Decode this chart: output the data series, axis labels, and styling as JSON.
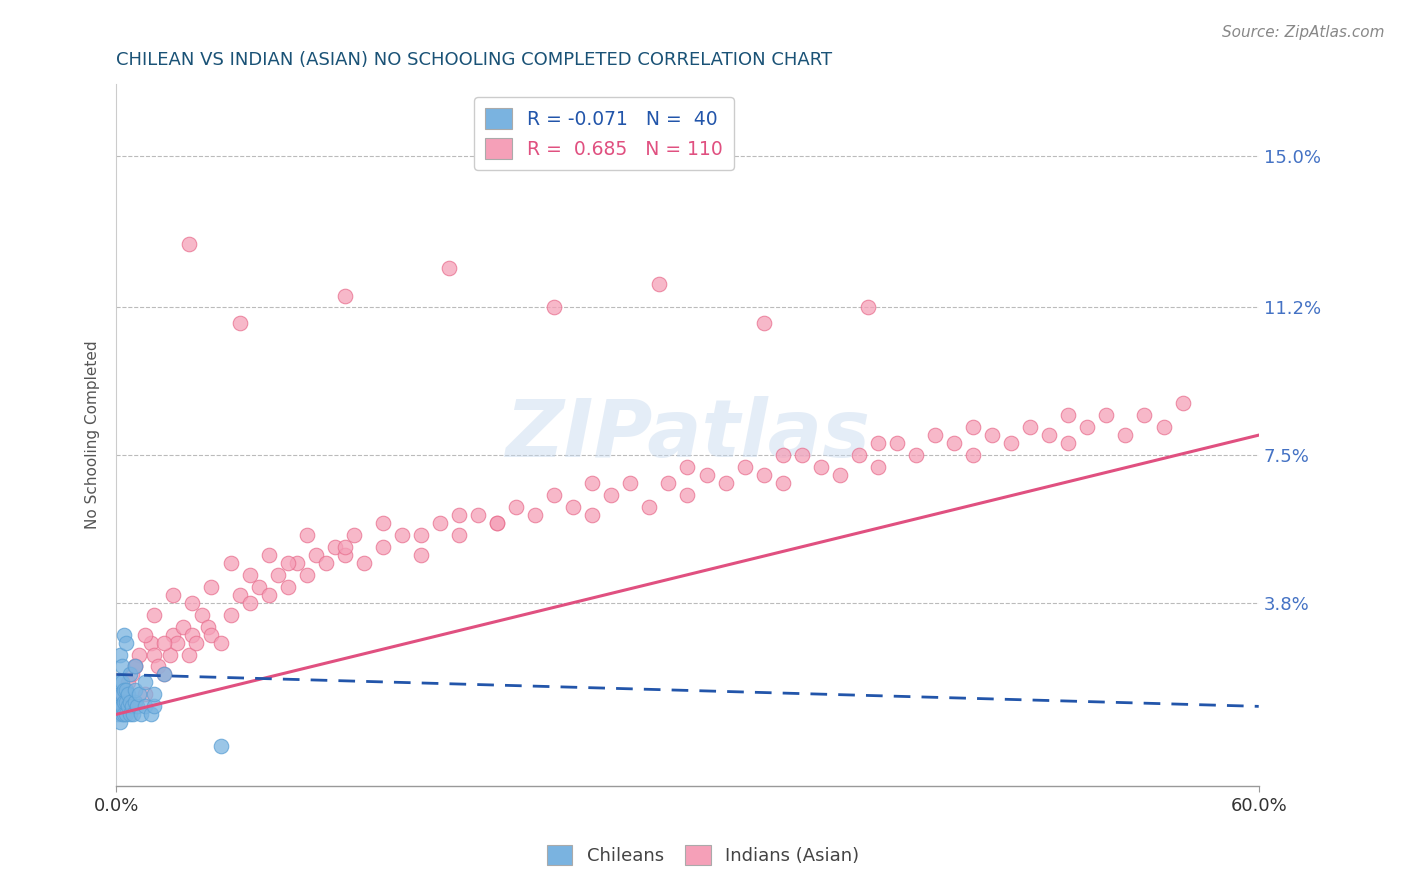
{
  "title": "CHILEAN VS INDIAN (ASIAN) NO SCHOOLING COMPLETED CORRELATION CHART",
  "source_text": "Source: ZipAtlas.com",
  "ylabel": "No Schooling Completed",
  "xlim": [
    0.0,
    0.6
  ],
  "ylim": [
    -0.008,
    0.168
  ],
  "ytick_values": [
    0.038,
    0.075,
    0.112,
    0.15
  ],
  "ytick_labels": [
    "3.8%",
    "7.5%",
    "11.2%",
    "15.0%"
  ],
  "title_color": "#1a5276",
  "title_fontsize": 13,
  "axis_color": "#cccccc",
  "ytick_color": "#4472c4",
  "grid_color": "#bbbbbb",
  "background_color": "#ffffff",
  "watermark": "ZIPatlas",
  "source_color": "#888888",
  "chilean_color": "#7ab3e0",
  "chilean_edge": "#5a9fd4",
  "chilean_trend": "#2255aa",
  "indian_color": "#f5a0b8",
  "indian_edge": "#e8708f",
  "indian_trend": "#e05080",
  "chilean_R": -0.071,
  "chilean_N": 40,
  "indian_R": 0.685,
  "indian_N": 110,
  "chilean_x": [
    0.001,
    0.001,
    0.002,
    0.002,
    0.002,
    0.002,
    0.003,
    0.003,
    0.003,
    0.003,
    0.004,
    0.004,
    0.004,
    0.005,
    0.005,
    0.005,
    0.006,
    0.006,
    0.007,
    0.007,
    0.008,
    0.009,
    0.01,
    0.01,
    0.011,
    0.012,
    0.013,
    0.015,
    0.018,
    0.02,
    0.002,
    0.003,
    0.004,
    0.005,
    0.007,
    0.01,
    0.015,
    0.02,
    0.025,
    0.055
  ],
  "chilean_y": [
    0.01,
    0.012,
    0.008,
    0.012,
    0.015,
    0.018,
    0.01,
    0.012,
    0.015,
    0.018,
    0.01,
    0.013,
    0.016,
    0.01,
    0.013,
    0.016,
    0.012,
    0.015,
    0.01,
    0.013,
    0.012,
    0.01,
    0.013,
    0.016,
    0.012,
    0.015,
    0.01,
    0.012,
    0.01,
    0.012,
    0.025,
    0.022,
    0.03,
    0.028,
    0.02,
    0.022,
    0.018,
    0.015,
    0.02,
    0.002
  ],
  "indian_x": [
    0.003,
    0.006,
    0.008,
    0.01,
    0.012,
    0.015,
    0.018,
    0.02,
    0.022,
    0.025,
    0.028,
    0.03,
    0.032,
    0.035,
    0.038,
    0.04,
    0.042,
    0.045,
    0.048,
    0.05,
    0.055,
    0.06,
    0.065,
    0.07,
    0.075,
    0.08,
    0.085,
    0.09,
    0.095,
    0.1,
    0.105,
    0.11,
    0.115,
    0.12,
    0.125,
    0.13,
    0.14,
    0.15,
    0.16,
    0.17,
    0.18,
    0.19,
    0.2,
    0.21,
    0.22,
    0.23,
    0.24,
    0.25,
    0.26,
    0.27,
    0.28,
    0.29,
    0.3,
    0.31,
    0.32,
    0.33,
    0.34,
    0.35,
    0.36,
    0.37,
    0.38,
    0.39,
    0.4,
    0.41,
    0.42,
    0.43,
    0.44,
    0.45,
    0.46,
    0.47,
    0.48,
    0.49,
    0.5,
    0.51,
    0.52,
    0.53,
    0.54,
    0.55,
    0.56,
    0.01,
    0.015,
    0.02,
    0.025,
    0.03,
    0.04,
    0.05,
    0.06,
    0.07,
    0.08,
    0.09,
    0.1,
    0.12,
    0.14,
    0.16,
    0.18,
    0.2,
    0.25,
    0.3,
    0.35,
    0.4,
    0.45,
    0.5,
    0.038,
    0.065,
    0.12,
    0.175,
    0.23,
    0.285,
    0.34,
    0.395
  ],
  "indian_y": [
    0.015,
    0.018,
    0.02,
    0.022,
    0.025,
    0.015,
    0.028,
    0.025,
    0.022,
    0.02,
    0.025,
    0.03,
    0.028,
    0.032,
    0.025,
    0.03,
    0.028,
    0.035,
    0.032,
    0.03,
    0.028,
    0.035,
    0.04,
    0.038,
    0.042,
    0.04,
    0.045,
    0.042,
    0.048,
    0.045,
    0.05,
    0.048,
    0.052,
    0.05,
    0.055,
    0.048,
    0.052,
    0.055,
    0.05,
    0.058,
    0.055,
    0.06,
    0.058,
    0.062,
    0.06,
    0.065,
    0.062,
    0.06,
    0.065,
    0.068,
    0.062,
    0.068,
    0.065,
    0.07,
    0.068,
    0.072,
    0.07,
    0.068,
    0.075,
    0.072,
    0.07,
    0.075,
    0.072,
    0.078,
    0.075,
    0.08,
    0.078,
    0.075,
    0.08,
    0.078,
    0.082,
    0.08,
    0.078,
    0.082,
    0.085,
    0.08,
    0.085,
    0.082,
    0.088,
    0.022,
    0.03,
    0.035,
    0.028,
    0.04,
    0.038,
    0.042,
    0.048,
    0.045,
    0.05,
    0.048,
    0.055,
    0.052,
    0.058,
    0.055,
    0.06,
    0.058,
    0.068,
    0.072,
    0.075,
    0.078,
    0.082,
    0.085,
    0.128,
    0.108,
    0.115,
    0.122,
    0.112,
    0.118,
    0.108,
    0.112
  ]
}
